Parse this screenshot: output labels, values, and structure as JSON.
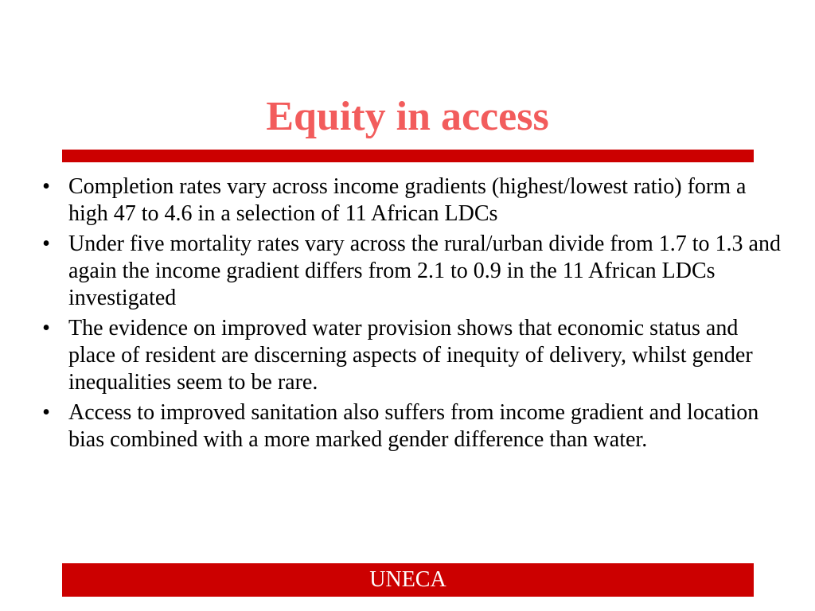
{
  "slide": {
    "title": "Equity in access",
    "bullets": [
      "Completion rates vary across income gradients (highest/lowest ratio)  form a high 47 to 4.6 in a selection of 11 African LDCs",
      "Under five mortality rates vary across the rural/urban divide from 1.7 to 1.3 and again the income gradient differs from 2.1 to 0.9 in the 11 African LDCs investigated",
      "The evidence on improved water provision shows that economic status and place of resident are discerning aspects of inequity of delivery, whilst gender inequalities seem to be rare.",
      "Access to improved sanitation also suffers from income gradient and location bias combined with a more marked gender difference than water."
    ],
    "bullet_symbol": "•",
    "footer": "UNECA"
  },
  "colors": {
    "title": "#f25c5c",
    "accent_bar": "#cc0000",
    "footer_text": "#ffffff",
    "body_text": "#000000"
  }
}
